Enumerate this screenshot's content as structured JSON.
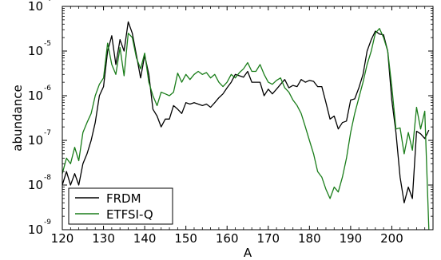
{
  "chart_data": {
    "type": "line",
    "title": "",
    "xlabel": "A",
    "ylabel": "abundance",
    "xlim": [
      120,
      210
    ],
    "ylim": [
      1e-09,
      0.0001
    ],
    "yscale": "log",
    "grid": false,
    "legend_position": "lower-left",
    "x_ticks": [
      "120",
      "130",
      "140",
      "150",
      "160",
      "170",
      "180",
      "190",
      "200"
    ],
    "y_ticks": [
      {
        "base": "10",
        "exponent": "-4",
        "value": 0.0001
      },
      {
        "base": "10",
        "exponent": "-5",
        "value": 1e-05
      },
      {
        "base": "10",
        "exponent": "-6",
        "value": 1e-06
      },
      {
        "base": "10",
        "exponent": "-7",
        "value": 1e-07
      },
      {
        "base": "10",
        "exponent": "-8",
        "value": 1e-08
      },
      {
        "base": "10",
        "exponent": "-9",
        "value": 1e-09
      }
    ],
    "series": [
      {
        "name": "FRDM",
        "color": "#000000",
        "points": [
          [
            120,
            1e-08
          ],
          [
            121,
            2e-08
          ],
          [
            122,
            1e-08
          ],
          [
            123,
            1.8e-08
          ],
          [
            124,
            1e-08
          ],
          [
            125,
            3e-08
          ],
          [
            126,
            5e-08
          ],
          [
            127,
            1e-07
          ],
          [
            128,
            2.5e-07
          ],
          [
            129,
            1e-06
          ],
          [
            130,
            1.6e-06
          ],
          [
            131,
            1e-05
          ],
          [
            132,
            2.2e-05
          ],
          [
            133,
            5e-06
          ],
          [
            134,
            1.8e-05
          ],
          [
            135,
            1e-05
          ],
          [
            136,
            4.5e-05
          ],
          [
            137,
            2.5e-05
          ],
          [
            138,
            8e-06
          ],
          [
            139,
            2.5e-06
          ],
          [
            140,
            8e-06
          ],
          [
            141,
            3e-06
          ],
          [
            142,
            5e-07
          ],
          [
            143,
            3.5e-07
          ],
          [
            144,
            2e-07
          ],
          [
            145,
            3e-07
          ],
          [
            146,
            3e-07
          ],
          [
            147,
            6e-07
          ],
          [
            148,
            5e-07
          ],
          [
            149,
            4e-07
          ],
          [
            150,
            7e-07
          ],
          [
            151,
            6.5e-07
          ],
          [
            152,
            7e-07
          ],
          [
            153,
            6.5e-07
          ],
          [
            154,
            6e-07
          ],
          [
            155,
            6.5e-07
          ],
          [
            156,
            5.5e-07
          ],
          [
            157,
            7e-07
          ],
          [
            158,
            9e-07
          ],
          [
            159,
            1.1e-06
          ],
          [
            160,
            1.5e-06
          ],
          [
            161,
            2e-06
          ],
          [
            162,
            3e-06
          ],
          [
            163,
            2.8e-06
          ],
          [
            164,
            2.6e-06
          ],
          [
            165,
            3.5e-06
          ],
          [
            166,
            2e-06
          ],
          [
            167,
            2e-06
          ],
          [
            168,
            2e-06
          ],
          [
            169,
            1e-06
          ],
          [
            170,
            1.4e-06
          ],
          [
            171,
            1.1e-06
          ],
          [
            172,
            1.4e-06
          ],
          [
            173,
            1.8e-06
          ],
          [
            174,
            2.3e-06
          ],
          [
            175,
            1.5e-06
          ],
          [
            176,
            1.7e-06
          ],
          [
            177,
            1.6e-06
          ],
          [
            178,
            2.3e-06
          ],
          [
            179,
            2e-06
          ],
          [
            180,
            2.2e-06
          ],
          [
            181,
            2.1e-06
          ],
          [
            182,
            1.6e-06
          ],
          [
            183,
            1.6e-06
          ],
          [
            184,
            7e-07
          ],
          [
            185,
            3e-07
          ],
          [
            186,
            3.5e-07
          ],
          [
            187,
            1.8e-07
          ],
          [
            188,
            2.5e-07
          ],
          [
            189,
            2.7e-07
          ],
          [
            190,
            8e-07
          ],
          [
            191,
            8.5e-07
          ],
          [
            192,
            1.5e-06
          ],
          [
            193,
            3e-06
          ],
          [
            194,
            1e-05
          ],
          [
            195,
            1.8e-05
          ],
          [
            196,
            2.8e-05
          ],
          [
            197,
            2.4e-05
          ],
          [
            198,
            2.3e-05
          ],
          [
            199,
            1e-05
          ],
          [
            200,
            8e-07
          ],
          [
            201,
            1.5e-07
          ],
          [
            202,
            1.5e-08
          ],
          [
            203,
            4e-09
          ],
          [
            204,
            9e-09
          ],
          [
            205,
            5e-09
          ],
          [
            206,
            1.6e-07
          ],
          [
            207,
            1.4e-07
          ],
          [
            208,
            1.1e-07
          ],
          [
            209,
            1.7e-07
          ]
        ]
      },
      {
        "name": "ETFSI-Q",
        "color": "#1a7d1a",
        "points": [
          [
            120,
            1.8e-08
          ],
          [
            121,
            4e-08
          ],
          [
            122,
            3e-08
          ],
          [
            123,
            7e-08
          ],
          [
            124,
            3.5e-08
          ],
          [
            125,
            1.5e-07
          ],
          [
            126,
            2.5e-07
          ],
          [
            127,
            4e-07
          ],
          [
            128,
            1e-06
          ],
          [
            129,
            1.8e-06
          ],
          [
            130,
            2.5e-06
          ],
          [
            131,
            1.5e-05
          ],
          [
            132,
            5e-06
          ],
          [
            133,
            3e-06
          ],
          [
            134,
            1.2e-05
          ],
          [
            135,
            2.8e-06
          ],
          [
            136,
            2.5e-05
          ],
          [
            137,
            2e-05
          ],
          [
            138,
            7e-06
          ],
          [
            139,
            4e-06
          ],
          [
            140,
            9e-06
          ],
          [
            141,
            2e-06
          ],
          [
            142,
            1e-06
          ],
          [
            143,
            6e-07
          ],
          [
            144,
            1.2e-06
          ],
          [
            145,
            1.1e-06
          ],
          [
            146,
            1e-06
          ],
          [
            147,
            1.2e-06
          ],
          [
            148,
            3.2e-06
          ],
          [
            149,
            2e-06
          ],
          [
            150,
            3e-06
          ],
          [
            151,
            2.3e-06
          ],
          [
            152,
            3e-06
          ],
          [
            153,
            3.5e-06
          ],
          [
            154,
            3e-06
          ],
          [
            155,
            3.3e-06
          ],
          [
            156,
            2.5e-06
          ],
          [
            157,
            3e-06
          ],
          [
            158,
            2e-06
          ],
          [
            159,
            1.6e-06
          ],
          [
            160,
            2e-06
          ],
          [
            161,
            3e-06
          ],
          [
            162,
            2.5e-06
          ],
          [
            163,
            3.3e-06
          ],
          [
            164,
            4e-06
          ],
          [
            165,
            5.5e-06
          ],
          [
            166,
            3.5e-06
          ],
          [
            167,
            3.5e-06
          ],
          [
            168,
            5e-06
          ],
          [
            169,
            3e-06
          ],
          [
            170,
            2e-06
          ],
          [
            171,
            1.8e-06
          ],
          [
            172,
            2.2e-06
          ],
          [
            173,
            2.5e-06
          ],
          [
            174,
            1.5e-06
          ],
          [
            175,
            1.2e-06
          ],
          [
            176,
            8e-07
          ],
          [
            177,
            6e-07
          ],
          [
            178,
            4e-07
          ],
          [
            179,
            2e-07
          ],
          [
            180,
            1e-07
          ],
          [
            181,
            5e-08
          ],
          [
            182,
            2e-08
          ],
          [
            183,
            1.5e-08
          ],
          [
            184,
            8e-09
          ],
          [
            185,
            5e-09
          ],
          [
            186,
            9e-09
          ],
          [
            187,
            7e-09
          ],
          [
            188,
            1.5e-08
          ],
          [
            189,
            4e-08
          ],
          [
            190,
            1.5e-07
          ],
          [
            191,
            4e-07
          ],
          [
            192,
            9e-07
          ],
          [
            193,
            2e-06
          ],
          [
            194,
            5e-06
          ],
          [
            195,
            1e-05
          ],
          [
            196,
            2.5e-05
          ],
          [
            197,
            3.2e-05
          ],
          [
            198,
            2e-05
          ],
          [
            199,
            1e-05
          ],
          [
            200,
            1.6e-06
          ],
          [
            201,
            1.8e-07
          ],
          [
            202,
            1.9e-07
          ],
          [
            203,
            5e-08
          ],
          [
            204,
            1.5e-07
          ],
          [
            205,
            6e-08
          ],
          [
            206,
            5.5e-07
          ],
          [
            207,
            1.8e-07
          ],
          [
            208,
            4.5e-07
          ],
          [
            209,
            1e-09
          ]
        ]
      }
    ]
  }
}
